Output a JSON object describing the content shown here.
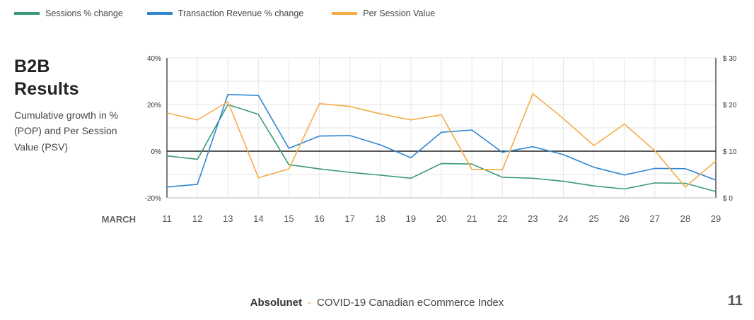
{
  "legend": [
    {
      "label": "Sessions % change",
      "color": "#3a9a76"
    },
    {
      "label": "Transaction Revenue % change",
      "color": "#2f86d4"
    },
    {
      "label": "Per Session Value",
      "color": "#f5ac45"
    }
  ],
  "heading": {
    "title": "B2B\nResults",
    "subtitle": "Cumulative growth in % (POP) and Per Session Value (PSV)"
  },
  "chart_data": {
    "type": "line",
    "x": [
      "11",
      "12",
      "13",
      "14",
      "15",
      "16",
      "17",
      "18",
      "19",
      "20",
      "21",
      "22",
      "23",
      "24",
      "25",
      "26",
      "27",
      "28",
      "29"
    ],
    "xlabel": "MARCH",
    "y_left": {
      "ticks": [
        "40%",
        "20%",
        "0%",
        "-20%"
      ],
      "lim": [
        -20,
        40
      ]
    },
    "y_right": {
      "ticks": [
        "$ 30",
        "$ 20",
        "$ 10",
        "$ 0"
      ],
      "lim": [
        0,
        30
      ]
    },
    "series": [
      {
        "name": "Sessions % change",
        "axis": "left",
        "color": "#3a9a76",
        "values": [
          -2,
          -3.5,
          20,
          15.8,
          -5.8,
          -7.6,
          -9.1,
          -10.3,
          -11.6,
          -5.3,
          -5.5,
          -11.2,
          -11.6,
          -12.9,
          -14.9,
          -16.2,
          -13.6,
          -13.8,
          -17.3
        ]
      },
      {
        "name": "Transaction Revenue % change",
        "axis": "left",
        "color": "#2f86d4",
        "values": [
          -15.4,
          -14.2,
          24.3,
          23.9,
          1.2,
          6.5,
          6.7,
          2.7,
          -2.8,
          8.1,
          9.1,
          -0.5,
          1.9,
          -1.5,
          -6.9,
          -10.2,
          -7.4,
          -7.5,
          -12.4
        ]
      },
      {
        "name": "Per Session Value",
        "axis": "right",
        "color": "#f5ac45",
        "values": [
          18.2,
          16.7,
          20.6,
          4.3,
          6.2,
          20.2,
          19.6,
          18.0,
          16.7,
          17.8,
          6.1,
          6.0,
          22.3,
          17.0,
          11.2,
          15.8,
          10.1,
          2.3,
          7.9
        ]
      }
    ]
  },
  "footer": {
    "brand": "Absolunet",
    "separator": "-",
    "text": "COVID-19 Canadian eCommerce Index",
    "page": "11"
  }
}
